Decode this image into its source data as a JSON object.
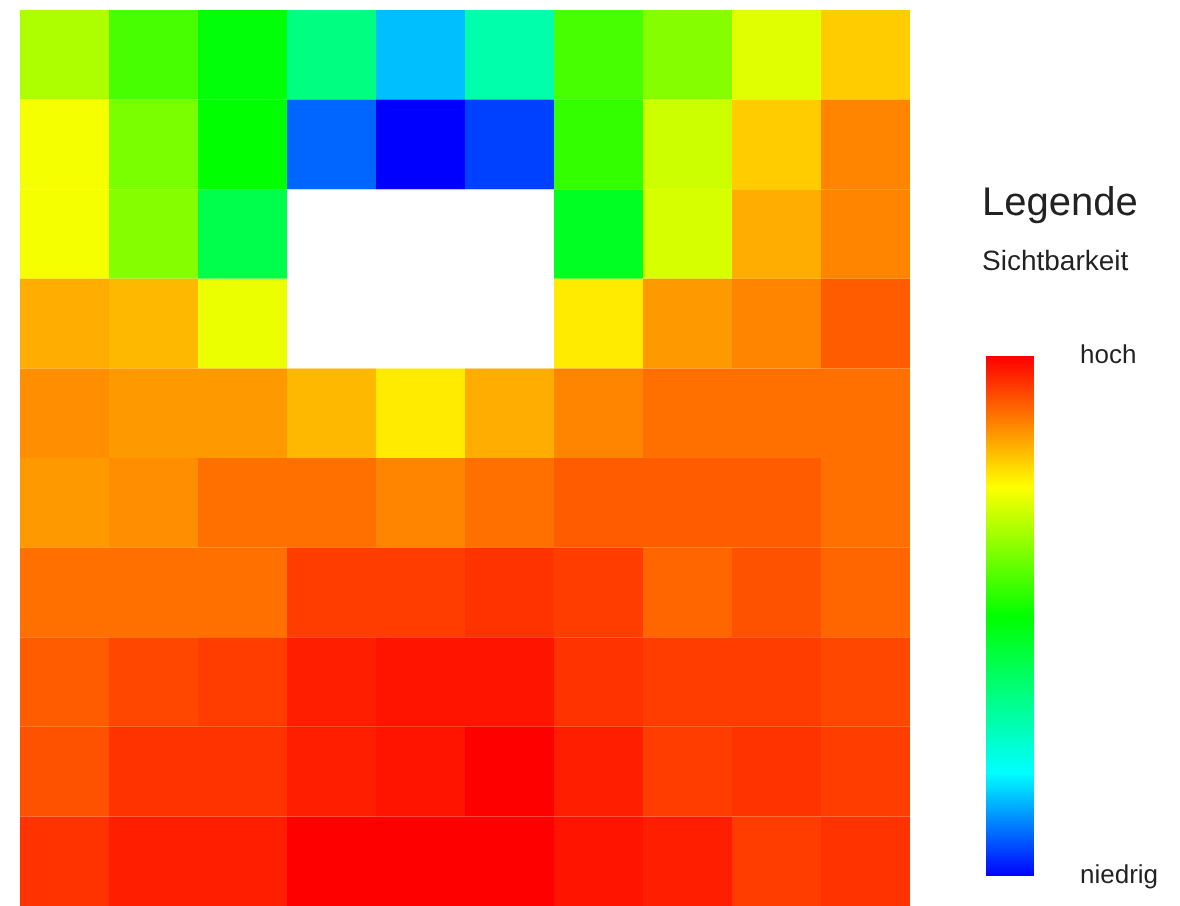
{
  "chart_data": {
    "type": "heatmap",
    "legend_title": "Legende",
    "clabel": "Sichtbarkeit",
    "categories": [
      null,
      null,
      null,
      null,
      null,
      null,
      null,
      null,
      null,
      null
    ],
    "y_categories": [
      null,
      null,
      null,
      null,
      null,
      null,
      null,
      null,
      null,
      null
    ],
    "cells": [
      [
        0.67,
        0.57,
        0.49,
        0.35,
        0.15,
        0.3,
        0.57,
        0.63,
        0.72,
        0.8
      ],
      [
        0.74,
        0.62,
        0.5,
        0.08,
        0,
        0.05,
        0.55,
        0.7,
        0.8,
        0.87
      ],
      [
        0.74,
        0.63,
        0.41,
        null,
        null,
        null,
        0.46,
        0.71,
        0.83,
        0.87
      ],
      [
        0.83,
        0.82,
        0.73,
        null,
        null,
        null,
        0.77,
        0.85,
        0.87,
        0.91
      ],
      [
        0.86,
        0.85,
        0.85,
        0.82,
        0.77,
        0.83,
        0.87,
        0.89,
        0.89,
        0.89
      ],
      [
        0.85,
        0.86,
        0.89,
        0.89,
        0.87,
        0.89,
        0.91,
        0.91,
        0.91,
        0.89
      ],
      [
        0.89,
        0.89,
        0.89,
        0.94,
        0.94,
        0.95,
        0.94,
        0.9,
        0.92,
        0.9
      ],
      [
        0.91,
        0.93,
        0.94,
        0.97,
        0.98,
        0.98,
        0.95,
        0.94,
        0.94,
        0.93
      ],
      [
        0.92,
        0.95,
        0.95,
        0.97,
        0.98,
        1,
        0.97,
        0.94,
        0.95,
        0.94
      ],
      [
        0.95,
        0.97,
        0.97,
        1,
        1,
        1,
        0.98,
        0.97,
        0.94,
        0.95
      ]
    ],
    "clim": [
      0,
      1
    ],
    "cticks": [
      {
        "value": 0,
        "label": "niedrig"
      },
      {
        "value": 1,
        "label": "hoch"
      }
    ]
  }
}
